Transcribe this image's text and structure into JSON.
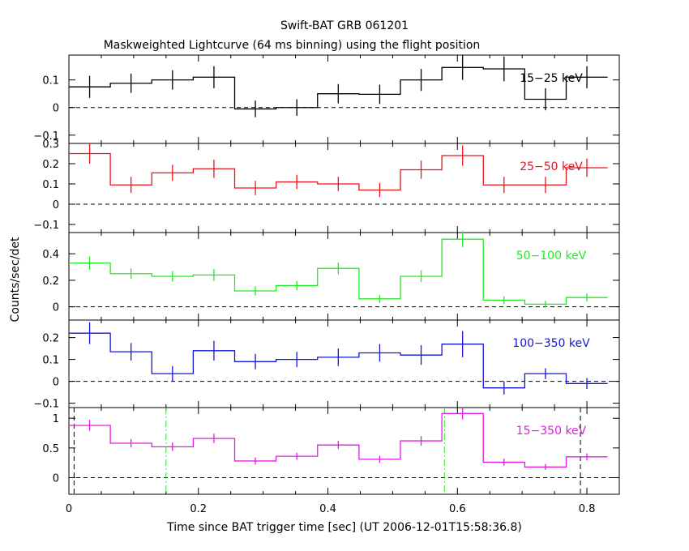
{
  "chart_data": {
    "type": "line",
    "title": "Swift-BAT GRB 061201",
    "subtitle": "Maskweighted Lightcurve (64 ms binning) using the flight position",
    "xlabel": "Time since BAT trigger time [sec] (UT 2006-12-01T15:58:36.8)",
    "ylabel": "Counts/sec/det",
    "xlim": [
      0,
      0.85
    ],
    "x_ticks": [
      0,
      0.2,
      0.4,
      0.6,
      0.8
    ],
    "x_tick_labels": [
      "0",
      "0.2",
      "0.4",
      "0.6",
      "0.8"
    ],
    "bin_edges": [
      0,
      0.064,
      0.128,
      0.192,
      0.256,
      0.32,
      0.384,
      0.448,
      0.512,
      0.576,
      0.64,
      0.704,
      0.768,
      0.832
    ],
    "vertical_lines": {
      "black_dashed": [
        0.008,
        0.79
      ],
      "green_dashdot": [
        0.15,
        0.58
      ]
    },
    "panels": [
      {
        "name": "15-25 keV",
        "label": "15−25 keV",
        "color": "#000000",
        "ylim": [
          -0.13,
          0.19
        ],
        "y_ticks": [
          -0.1,
          0,
          0.1
        ],
        "y_tick_labels": [
          "−0.1",
          "0",
          "0.1"
        ],
        "values": [
          0.075,
          0.088,
          0.1,
          0.11,
          -0.005,
          0.0,
          0.05,
          0.048,
          0.1,
          0.145,
          0.14,
          0.03,
          0.11
        ],
        "errors": [
          0.04,
          0.035,
          0.035,
          0.04,
          0.03,
          0.03,
          0.035,
          0.035,
          0.04,
          0.045,
          0.045,
          0.04,
          0.04
        ]
      },
      {
        "name": "25-50 keV",
        "label": "25−50 keV",
        "color": "#e8131f",
        "ylim": [
          -0.14,
          0.3
        ],
        "y_ticks": [
          -0.1,
          0,
          0.1,
          0.2,
          0.3
        ],
        "y_tick_labels": [
          "−0.1",
          "0",
          "0.1",
          "0.2",
          "0.3"
        ],
        "values": [
          0.25,
          0.095,
          0.155,
          0.175,
          0.08,
          0.11,
          0.1,
          0.07,
          0.17,
          0.24,
          0.095,
          0.095,
          0.18
        ],
        "errors": [
          0.05,
          0.04,
          0.04,
          0.045,
          0.035,
          0.035,
          0.035,
          0.035,
          0.045,
          0.05,
          0.04,
          0.04,
          0.045
        ]
      },
      {
        "name": "50-100 keV",
        "label": "50−100 keV",
        "color": "#27e827",
        "ylim": [
          -0.1,
          0.56
        ],
        "y_ticks": [
          0,
          0.2,
          0.4
        ],
        "y_tick_labels": [
          "0",
          "0.2",
          "0.4"
        ],
        "values": [
          0.33,
          0.25,
          0.23,
          0.24,
          0.12,
          0.16,
          0.29,
          0.06,
          0.23,
          0.51,
          0.05,
          0.02,
          0.07
        ],
        "errors": [
          0.05,
          0.04,
          0.04,
          0.045,
          0.035,
          0.035,
          0.045,
          0.03,
          0.045,
          0.06,
          0.03,
          0.025,
          0.03
        ]
      },
      {
        "name": "100-350 keV",
        "label": "100−350 keV",
        "color": "#1515d8",
        "ylim": [
          -0.12,
          0.28
        ],
        "y_ticks": [
          -0.1,
          0,
          0.1,
          0.2
        ],
        "y_tick_labels": [
          "−0.1",
          "0",
          "0.1",
          "0.2"
        ],
        "values": [
          0.22,
          0.135,
          0.035,
          0.14,
          0.09,
          0.1,
          0.11,
          0.13,
          0.12,
          0.17,
          -0.03,
          0.035,
          -0.01
        ],
        "errors": [
          0.05,
          0.04,
          0.035,
          0.045,
          0.035,
          0.035,
          0.04,
          0.04,
          0.045,
          0.06,
          0.03,
          0.025,
          0.025
        ]
      },
      {
        "name": "15-350 keV",
        "label": "15−350 keV",
        "color": "#e21ce2",
        "ylim": [
          -0.28,
          1.18
        ],
        "y_ticks": [
          0,
          0.5,
          1
        ],
        "y_tick_labels": [
          "0",
          "0.5",
          "1"
        ],
        "values": [
          0.88,
          0.58,
          0.52,
          0.66,
          0.28,
          0.36,
          0.55,
          0.31,
          0.62,
          1.08,
          0.26,
          0.18,
          0.35
        ],
        "errors": [
          0.09,
          0.07,
          0.07,
          0.08,
          0.06,
          0.06,
          0.07,
          0.06,
          0.08,
          0.1,
          0.06,
          0.05,
          0.06
        ]
      }
    ]
  }
}
